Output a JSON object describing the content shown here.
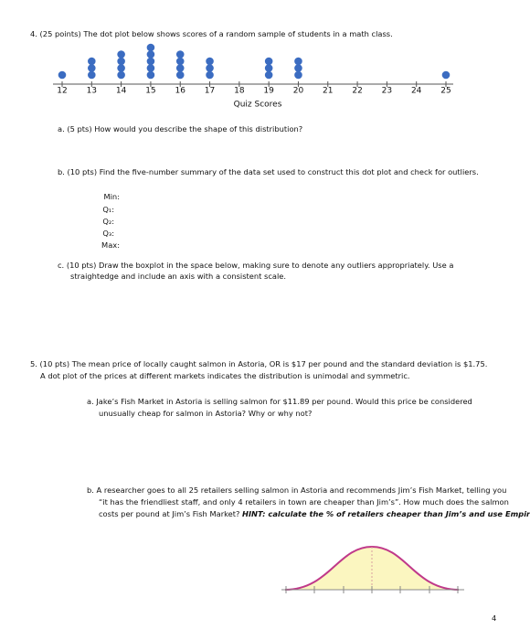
{
  "q4": {
    "heading": "4.  (25 points) The dot plot below shows scores of a random sample of students in a math class.",
    "dot_plot": {
      "type": "dot",
      "x": [
        12,
        13,
        14,
        15,
        16,
        17,
        18,
        19,
        20,
        21,
        22,
        23,
        24,
        25
      ],
      "values": [
        1,
        3,
        4,
        5,
        4,
        3,
        0,
        3,
        3,
        0,
        0,
        0,
        0,
        1
      ],
      "color": "#3b6cc1",
      "xlabel": "Quiz Scores",
      "xlim": [
        12,
        25
      ],
      "xticks": [
        12,
        13,
        14,
        15,
        16,
        17,
        18,
        19,
        20,
        21,
        22,
        23,
        24,
        25
      ]
    },
    "a": "a.  (5 pts) How would you describe the shape of this distribution?",
    "b": "b.  (10 pts) Find the five-number summary of the data set used to construct this dot plot and check for outliers.",
    "summary_labels": [
      "Min:",
      "Q₁:",
      "Q₂:",
      "Q₃:",
      "Max:"
    ],
    "c": [
      "c.  (10 pts) Draw the boxplot in the space below, making sure to denote any outliers appropriately.  Use a",
      "straightedge and include an axis with a consistent scale."
    ]
  },
  "q5": {
    "heading": [
      "5.  (10 pts) The mean price of locally caught salmon in Astoria, OR is $17 per pound and the standard deviation is $1.75.",
      "A dot plot of the prices at different markets indicates the distribution is unimodal and symmetric."
    ],
    "a": [
      "a.  Jake’s Fish Market in Astoria is selling salmon for $11.89 per pound. Would this price be considered",
      "unusually cheap for salmon in Astoria? Why or why not?"
    ],
    "b": [
      "b.  A researcher goes to all 25 retailers selling salmon in Astoria and recommends Jim’s Fish Market, telling you",
      "“it has the friendliest staff, and only 4 retailers in town are cheaper than Jim’s”.  How much does the salmon",
      "costs per pound at Jim’s Fish Market? "
    ],
    "b_hint": "HINT: calculate the % of retailers cheaper than Jim’s and use Empirical Rule."
  },
  "page_number": "4"
}
